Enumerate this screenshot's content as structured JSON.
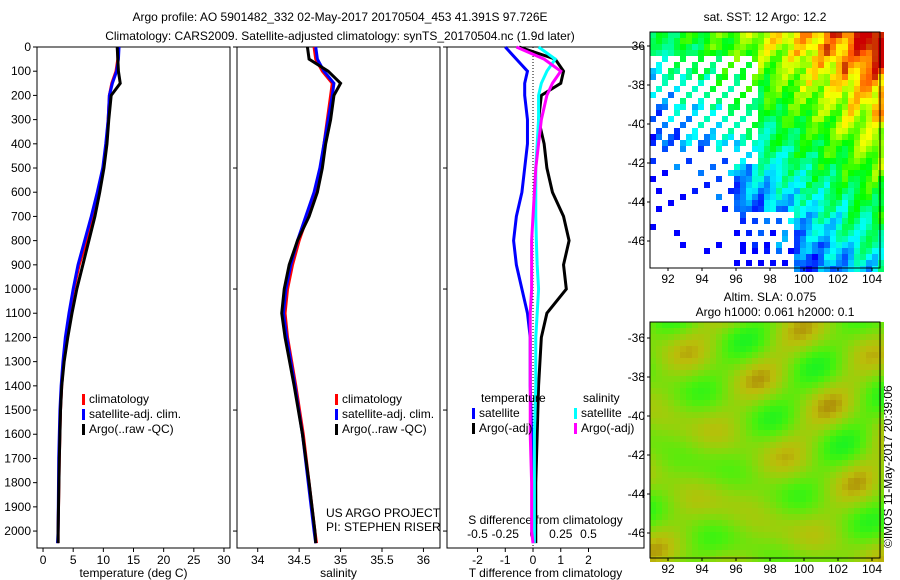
{
  "title_line1": "Argo profile: AO 5901482_332 02-May-2017 20170504_453 41.391S 97.726E",
  "title_line2": "Climatology: CARS2009. Satellite-adjusted climatology: synTS_20170504.nc (1.9d later)",
  "colors": {
    "climatology": "#ff0000",
    "satellite": "#0000ff",
    "argo": "#000000",
    "sal_satellite": "#00ffff",
    "sal_argo": "#ff00ff"
  },
  "chart_data": [
    {
      "type": "line",
      "xlabel": "temperature (deg C)",
      "ylim": [
        0,
        2070
      ],
      "xlim": [
        -1,
        31
      ],
      "xticks": [
        0,
        5,
        10,
        15,
        20,
        25,
        30
      ],
      "yticks": [
        0,
        100,
        200,
        300,
        400,
        500,
        600,
        700,
        800,
        900,
        1000,
        1100,
        1200,
        1300,
        1400,
        1500,
        1600,
        1700,
        1800,
        1900,
        2000
      ],
      "depth": [
        0,
        50,
        100,
        150,
        200,
        300,
        400,
        500,
        600,
        700,
        800,
        900,
        1000,
        1100,
        1200,
        1300,
        1400,
        1500,
        1700,
        2000,
        2050
      ],
      "series": [
        {
          "name": "climatology",
          "values": [
            12.4,
            12.4,
            12.1,
            11.4,
            11.0,
            10.8,
            10.5,
            10.0,
            9.2,
            8.3,
            7.2,
            6.0,
            5.1,
            4.4,
            3.8,
            3.4,
            3.1,
            2.9,
            2.7,
            2.5,
            2.5
          ]
        },
        {
          "name": "satellite-adj. clim.",
          "values": [
            12.6,
            12.5,
            12.2,
            11.5,
            11.0,
            10.8,
            10.4,
            9.9,
            9.0,
            8.0,
            6.9,
            5.8,
            5.0,
            4.3,
            3.7,
            3.3,
            3.0,
            2.8,
            2.6,
            2.5,
            2.4
          ]
        },
        {
          "name": "Argo(..raw -QC)",
          "values": [
            12.3,
            12.4,
            12.5,
            12.8,
            11.3,
            10.9,
            10.6,
            10.1,
            9.4,
            8.6,
            7.6,
            6.6,
            5.6,
            4.8,
            4.1,
            3.5,
            3.1,
            2.9,
            2.7,
            2.5,
            2.5
          ]
        }
      ],
      "legend": [
        "climatology",
        "satellite-adj. clim.",
        "Argo(..raw -QC)"
      ]
    },
    {
      "type": "line",
      "xlabel": "salinity",
      "ylim": [
        0,
        2070
      ],
      "xlim": [
        33.75,
        36.2
      ],
      "xticks": [
        "34",
        "34.5",
        "35",
        "35.5",
        "36"
      ],
      "depth": [
        0,
        50,
        100,
        150,
        200,
        300,
        400,
        500,
        600,
        700,
        800,
        900,
        1000,
        1100,
        1200,
        1400,
        1600,
        1800,
        2000,
        2050
      ],
      "series": [
        {
          "name": "climatology",
          "values": [
            34.68,
            34.7,
            34.78,
            34.9,
            34.88,
            34.84,
            34.8,
            34.76,
            34.7,
            34.6,
            34.5,
            34.42,
            34.36,
            34.33,
            34.36,
            34.46,
            34.55,
            34.62,
            34.69,
            34.71
          ]
        },
        {
          "name": "satellite-adj. clim.",
          "values": [
            34.7,
            34.72,
            34.8,
            34.92,
            34.9,
            34.85,
            34.8,
            34.75,
            34.68,
            34.58,
            34.48,
            34.4,
            34.34,
            34.31,
            34.35,
            34.45,
            34.54,
            34.61,
            34.68,
            34.7
          ]
        },
        {
          "name": "Argo(..raw -QC)",
          "values": [
            34.6,
            34.62,
            34.85,
            35.0,
            34.92,
            34.88,
            34.82,
            34.78,
            34.72,
            34.62,
            34.48,
            34.38,
            34.32,
            34.29,
            34.33,
            34.44,
            34.54,
            34.62,
            34.69,
            34.7
          ]
        }
      ],
      "legend": [
        "climatology",
        "satellite-adj. clim.",
        "Argo(..raw -QC)"
      ],
      "annotation": [
        "US ARGO PROJECT",
        "PI: STEPHEN RISER"
      ]
    },
    {
      "type": "line",
      "xlabel": "T difference from climatology",
      "xlabel2": "S difference from climatology",
      "ylim": [
        0,
        2070
      ],
      "xlim": [
        -3.1,
        4.0
      ],
      "xticks": [
        -2,
        -1,
        0,
        1,
        2
      ],
      "xticks2": [
        "-0.5",
        "-0.25",
        "0",
        "0.25",
        "0.5"
      ],
      "depth": [
        0,
        50,
        100,
        150,
        200,
        300,
        400,
        500,
        600,
        700,
        800,
        900,
        1000,
        1100,
        1200,
        1400,
        1600,
        1800,
        2000,
        2050
      ],
      "series": [
        {
          "name": "temperature satellite",
          "values": [
            -1.0,
            -0.6,
            -0.2,
            -0.3,
            -0.3,
            -0.2,
            -0.2,
            -0.3,
            -0.4,
            -0.6,
            -0.7,
            -0.6,
            -0.4,
            -0.2,
            -0.1,
            -0.1,
            -0.05,
            0,
            0,
            0
          ]
        },
        {
          "name": "temperature Argo(-adj)",
          "values": [
            -0.5,
            0.8,
            1.1,
            1.0,
            0.3,
            0.2,
            0.4,
            0.5,
            0.7,
            1.1,
            1.3,
            1.1,
            1.2,
            0.5,
            0.3,
            0.2,
            0.15,
            0.1,
            0.1,
            0.1
          ]
        },
        {
          "name": "salinity satellite",
          "values": [
            0.2,
            0.8,
            0.5,
            0.3,
            0.2,
            0.2,
            0.15,
            0.1,
            0.1,
            0.1,
            0.12,
            0.15,
            0.2,
            0.15,
            0.1,
            0.1,
            0.05,
            0.05,
            0.05,
            0.05
          ]
        },
        {
          "name": "salinity Argo(-adj)",
          "values": [
            -0.6,
            0.4,
            1.0,
            0.7,
            0.5,
            0.3,
            0.2,
            0.1,
            0.05,
            0,
            -0.05,
            -0.05,
            -0.05,
            -0.1,
            -0.1,
            -0.1,
            -0.1,
            -0.05,
            -0.05,
            0
          ]
        }
      ],
      "legend_headers": [
        "temperature",
        "salinity"
      ],
      "legend": [
        "satellite",
        "Argo(-adj)",
        "satellite",
        "Argo(-adj)"
      ]
    }
  ],
  "maps": {
    "sst_title": "sat. SST: 12 Argo: 12.2",
    "sla_title1": "Altim. SLA: 0.075",
    "sla_title2": "Argo h1000: 0.061 h2000: 0.1",
    "lat_ticks": [
      "-36",
      "-38",
      "-40",
      "-42",
      "-44",
      "-46"
    ],
    "lon_ticks": [
      "92",
      "94",
      "96",
      "98",
      "100",
      "102",
      "104"
    ],
    "credit": "©IMOS 11-May-2017 20:39:06"
  }
}
